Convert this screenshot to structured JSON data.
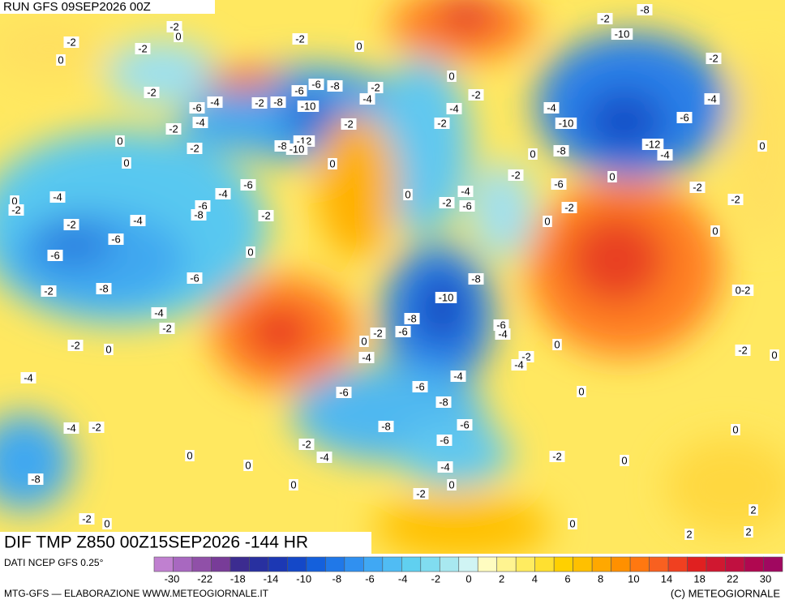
{
  "header": {
    "title": "RUN GFS 09SEP2026 00Z"
  },
  "map": {
    "labels": [
      "-2",
      "0",
      "-2",
      "0",
      "-2",
      "-2",
      "-6",
      "-4",
      "-4",
      "-2",
      "0",
      "-2",
      "0",
      "-2",
      "-8",
      "-10",
      "-6",
      "-6",
      "-8",
      "-2",
      "0",
      "-2",
      "-4",
      "-2",
      "-8",
      "-12",
      "-10",
      "0",
      "0",
      "-2",
      "-4",
      "-2",
      "-2",
      "-8",
      "-10",
      "-2",
      "-4",
      "-10",
      "-8",
      "-6",
      "-4",
      "-12",
      "-4",
      "0",
      "-2",
      "0",
      "-6",
      "-2",
      "0",
      "-2",
      "0",
      "-2",
      "0",
      "-4",
      "0",
      "-2",
      "-2",
      "-4",
      "-6",
      "-8",
      "-4",
      "-6",
      "-2",
      "0",
      "-6",
      "-6",
      "-8",
      "-6",
      "-2",
      "-4",
      "-2",
      "-2",
      "0",
      "-4",
      "0",
      "-2",
      "-4",
      "-6",
      "-8",
      "-10",
      "-8",
      "-6",
      "-2",
      "0",
      "-4",
      "-6",
      "-4",
      "-2",
      "-4",
      "0",
      "0-2",
      "-2",
      "0",
      "-6",
      "-4",
      "-8",
      "-6",
      "-8",
      "-6",
      "-6",
      "-2",
      "-4",
      "0",
      "0",
      "-2",
      "-4",
      "-8",
      "0",
      "-4",
      "-2",
      "0",
      "-2",
      "0",
      "0",
      "0",
      "0",
      "-2",
      "0",
      "2",
      "2",
      "2"
    ]
  },
  "footer": {
    "title": "DIF TMP Z850 00Z15SEP2026 -144 HR",
    "source": "DATI NCEP GFS 0.25°",
    "credit": "MTG-GFS — ELABORAZIONE WWW.METEOGIORNALE.IT",
    "copyright": "(C) METEOGIORNALE"
  },
  "colorbar": {
    "colors": [
      "#c080d0",
      "#a868c0",
      "#9050a8",
      "#783c98",
      "#3c2c90",
      "#2830a0",
      "#1c38b4",
      "#1448c8",
      "#1460dc",
      "#2078e8",
      "#3090f0",
      "#40a8f4",
      "#50bcf4",
      "#60d0f0",
      "#80dcf0",
      "#a8e8f0",
      "#d0f4f4",
      "#fffcc0",
      "#fff490",
      "#ffec60",
      "#ffe030",
      "#ffd000",
      "#ffc000",
      "#ffa800",
      "#ff9000",
      "#ff7810",
      "#f86020",
      "#f04020",
      "#e02020",
      "#d01830",
      "#c01040",
      "#b00850",
      "#a00860"
    ],
    "labels": [
      -30,
      -22,
      -18,
      -14,
      -10,
      -8,
      -6,
      -4,
      -2,
      0,
      2,
      4,
      6,
      8,
      10,
      14,
      18,
      22,
      30
    ]
  }
}
